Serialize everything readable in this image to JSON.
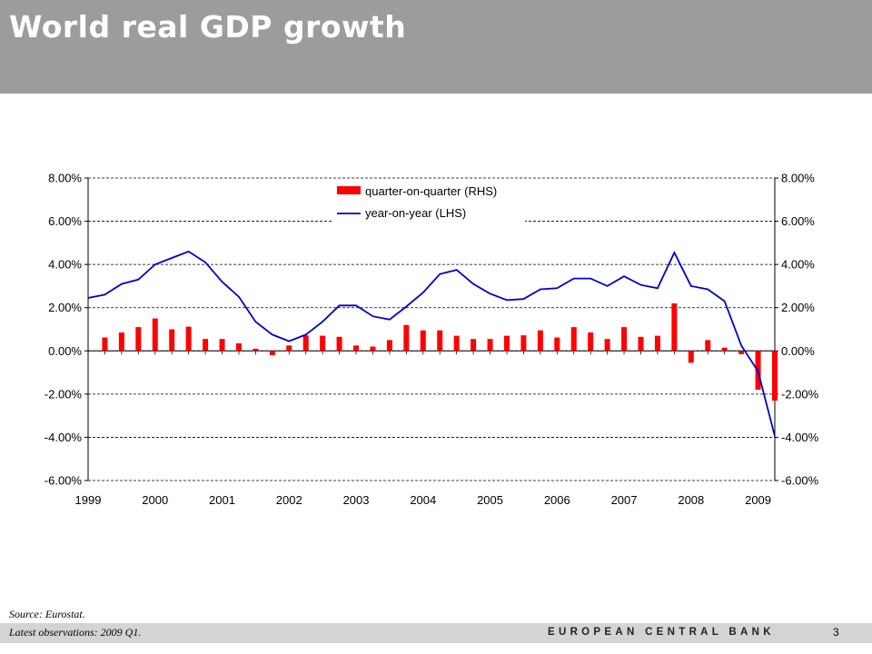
{
  "header": {
    "title": "World real GDP growth"
  },
  "footer": {
    "source": "Source: Eurostat.",
    "latest": "Latest observations: 2009 Q1.",
    "bank": "EUROPEAN CENTRAL BANK",
    "page": "3"
  },
  "colors": {
    "bars": "#ff0000",
    "line": "#0000cc",
    "header_bg": "#9c9c9c",
    "footer_bg": "#d4d4d4"
  },
  "chart_data": {
    "type": "bar+line",
    "categories": [
      "1999",
      "2000",
      "2001",
      "2002",
      "2003",
      "2004",
      "2005",
      "2006",
      "2007",
      "2008",
      "2009"
    ],
    "x_start": 1999.0,
    "x_end": 2009.25,
    "ylim": [
      -0.06,
      0.08
    ],
    "ytick_values": [
      -0.06,
      -0.04,
      -0.02,
      0,
      0.02,
      0.04,
      0.06,
      0.08
    ],
    "yticks_left": [
      "-6.00%",
      "-4.00%",
      "-2.00%",
      "0.00%",
      "2.00%",
      "4.00%",
      "6.00%",
      "8.00%"
    ],
    "yticks_right": [
      "-6.00%",
      "-4.00%",
      "-2.00%",
      "0.00%",
      "2.00%",
      "4.00%",
      "6.00%",
      "8.00%"
    ],
    "grid": "horizontal dashed",
    "legend_position": "top-center",
    "series": [
      {
        "name": "quarter-on-quarter (RHS)",
        "type": "bar",
        "color": "#ff0000",
        "x": [
          1999.25,
          1999.5,
          1999.75,
          2000.0,
          2000.25,
          2000.5,
          2000.75,
          2001.0,
          2001.25,
          2001.5,
          2001.75,
          2002.0,
          2002.25,
          2002.5,
          2002.75,
          2003.0,
          2003.25,
          2003.5,
          2003.75,
          2004.0,
          2004.25,
          2004.5,
          2004.75,
          2005.0,
          2005.25,
          2005.5,
          2005.75,
          2006.0,
          2006.25,
          2006.5,
          2006.75,
          2007.0,
          2007.25,
          2007.5,
          2007.75,
          2008.0,
          2008.25,
          2008.5,
          2008.75,
          2009.0,
          2009.25
        ],
        "values": [
          0.0062,
          0.0085,
          0.011,
          0.015,
          0.01,
          0.0112,
          0.0055,
          0.0055,
          0.0035,
          0.001,
          -0.002,
          0.0025,
          0.0072,
          0.007,
          0.0065,
          0.0025,
          0.002,
          0.005,
          0.012,
          0.0095,
          0.0095,
          0.007,
          0.0055,
          0.0055,
          0.007,
          0.0072,
          0.0095,
          0.0062,
          0.011,
          0.0085,
          0.0055,
          0.011,
          0.0065,
          0.007,
          0.022,
          -0.0055,
          0.005,
          0.0015,
          -0.0015,
          -0.018,
          -0.023
        ]
      },
      {
        "name": "year-on-year (LHS)",
        "type": "line",
        "color": "#0000cc",
        "x": [
          1999.0,
          1999.25,
          1999.5,
          1999.75,
          2000.0,
          2000.25,
          2000.5,
          2000.75,
          2001.0,
          2001.25,
          2001.5,
          2001.75,
          2002.0,
          2002.25,
          2002.5,
          2002.75,
          2003.0,
          2003.25,
          2003.5,
          2003.75,
          2004.0,
          2004.25,
          2004.5,
          2004.75,
          2005.0,
          2005.25,
          2005.5,
          2005.75,
          2006.0,
          2006.25,
          2006.5,
          2006.75,
          2007.0,
          2007.25,
          2007.5,
          2007.75,
          2008.0,
          2008.25,
          2008.5,
          2008.75,
          2009.0,
          2009.25
        ],
        "values": [
          0.0245,
          0.026,
          0.031,
          0.033,
          0.04,
          0.043,
          0.046,
          0.041,
          0.032,
          0.025,
          0.0135,
          0.0075,
          0.0045,
          0.0075,
          0.0135,
          0.021,
          0.021,
          0.016,
          0.0145,
          0.0205,
          0.027,
          0.0355,
          0.0375,
          0.031,
          0.0265,
          0.0235,
          0.024,
          0.0285,
          0.029,
          0.0335,
          0.0335,
          0.03,
          0.0345,
          0.0305,
          0.029,
          0.0455,
          0.03,
          0.0285,
          0.023,
          0.0025,
          -0.0095,
          -0.0395
        ]
      }
    ]
  }
}
